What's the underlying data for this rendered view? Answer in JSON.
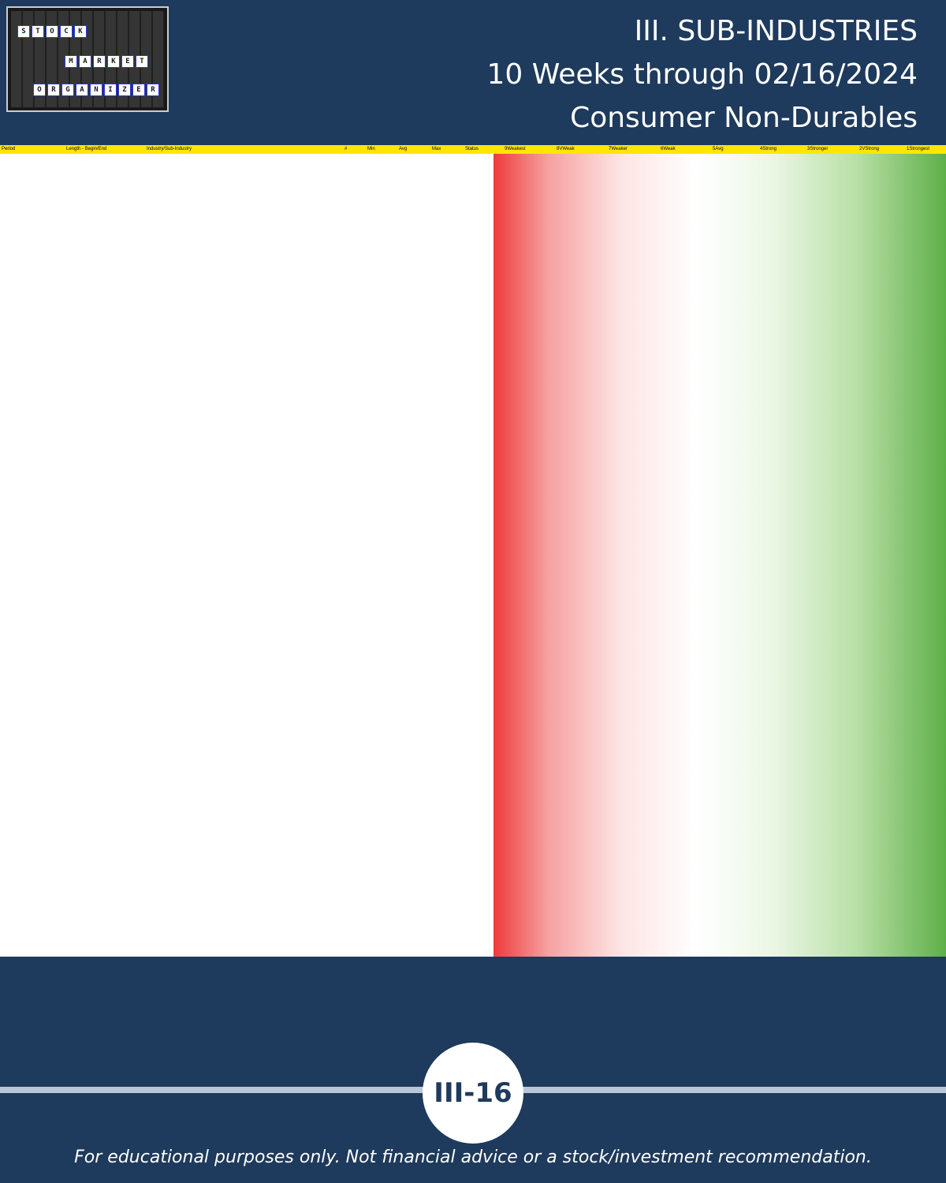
{
  "logo": {
    "row1": "STOCK",
    "row2": "MARKET",
    "row3": "ORGANIZER"
  },
  "title": {
    "line1": "III. SUB-INDUSTRIES",
    "line2": "10 Weeks through 02/16/2024",
    "line3": "Consumer Non-Durables"
  },
  "table": {
    "headers": [
      "Period",
      "Length - Begin/End",
      "Industry/Sub-Industry",
      "#",
      "Min",
      "Avg",
      "Max",
      "Status",
      "9Weakest",
      "8VWeak",
      "7Weaker",
      "6Weak",
      "5Avg",
      "4Strong",
      "3Stronger",
      "2VStrong",
      "1Strongest"
    ]
  },
  "page_number": "III-16",
  "disclaimer": "For educational purposes only. Not financial advice or a stock/investment recommendation."
}
